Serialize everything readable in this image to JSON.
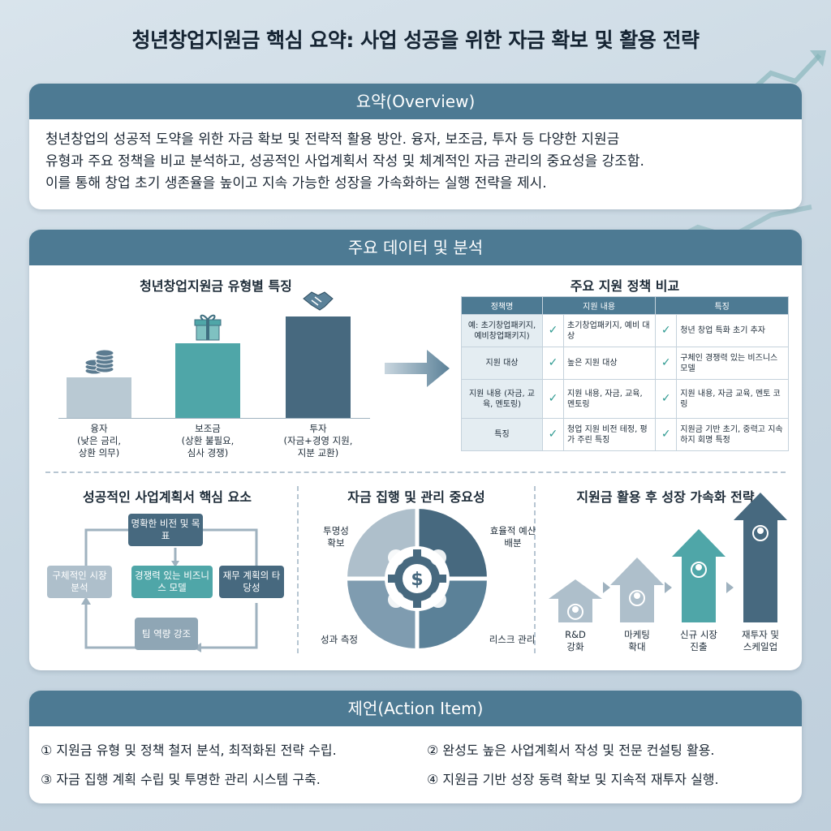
{
  "title": "청년창업지원금 핵심 요약: 사업 성공을 위한 자금 확보 및 활용 전략",
  "overview": {
    "heading": "요약(Overview)",
    "lines": [
      "청년창업의 성공적 도약을 위한 자금 확보 및 전략적 활용 방안. 융자, 보조금, 투자 등 다양한 지원금",
      "유형과 주요 정책을 비교 분석하고, 성공적인 사업계획서 작성 및 체계적인 자금 관리의 중요성을 강조함.",
      "이를 통해 창업 초기 생존율을 높이고 지속 가능한 성장을 가속화하는 실행 전략을 제시."
    ]
  },
  "analysis": {
    "heading": "주요 데이터 및 분석",
    "types_chart": {
      "title": "청년창업지원금 유형별 특징",
      "bars": [
        {
          "label1": "융자",
          "label2": "(낮은 금리,",
          "label3": "상환 의무)",
          "color": "#b9c9d3",
          "level": 0.37,
          "icon": "coins-icon"
        },
        {
          "label1": "보조금",
          "label2": "(상환 불필요,",
          "label3": "심사 경쟁)",
          "color": "#4fa6a8",
          "level": 0.68,
          "icon": "gift-icon"
        },
        {
          "label1": "투자",
          "label2": "(자금+경영 지원,",
          "label3": "지분 교환)",
          "color": "#47697f",
          "level": 0.92,
          "icon": "handshake-icon"
        }
      ]
    },
    "policy": {
      "title": "주요 지원 정책 비교",
      "headers": [
        "정책명",
        "지원 내용",
        "특징"
      ],
      "rows": [
        {
          "name": "예: 초기창업패키지, 예비창업패키지)",
          "content": "초기창업패키지, 예비 대상",
          "feature": "청년 창업 특화 초기 추자"
        },
        {
          "name": "지원 대상",
          "content": "높은 지원 대상",
          "feature": "구체인 경쟁력 있는 비즈니스 모델"
        },
        {
          "name": "지원 내용 (자금, 교육, 멘토링)",
          "content": "지원 내용, 자금, 교육, 멘토링",
          "feature": "지원 내용, 자금 교육, 멘토 코링"
        },
        {
          "name": "특징",
          "content": "청업 지원 비전 테정, 평가 주린 특징",
          "feature": "지원금 기반 초기, 중력고 지속하지 회명 특정"
        }
      ],
      "check": "✓"
    },
    "plan": {
      "title": "성공적인 사업계획서 핵심 요소",
      "top": "명확한 비전 및 목표",
      "left": "구체적인 시장 분석",
      "center": "경쟁력 있는 비즈니스 모델",
      "right": "재무 계획의 타당성",
      "bottom": "팀 역량 강조"
    },
    "funds": {
      "title": "자금 집행 및 관리 중요성",
      "q1": "투명성 확보",
      "q2": "효율적 예산 배분",
      "q3": "성과 측정",
      "q4": "리스크 관리",
      "center_symbol": "$"
    },
    "growth": {
      "title": "지원금 활용 후 성장 가속화 전략",
      "steps": [
        {
          "label1": "R&D",
          "label2": "강화",
          "color": "#aebfcb",
          "level": 0.33,
          "icon": "atom-icon"
        },
        {
          "label1": "마케팅",
          "label2": "확대",
          "color": "#aebfcb",
          "level": 0.5,
          "icon": "megaphone-icon"
        },
        {
          "label1": "신규 시장",
          "label2": "진출",
          "color": "#4fa6a8",
          "level": 0.72,
          "icon": "target-icon"
        },
        {
          "label1": "재투자 및",
          "label2": "스케일업",
          "color": "#47697f",
          "level": 1.0,
          "icon": "growth-chart-icon"
        }
      ]
    }
  },
  "action": {
    "heading": "제언(Action Item)",
    "items": [
      "① 지원금 유형 및 정책 철저 분석, 최적화된 전략 수립.",
      "② 완성도 높은 사업계획서 작성 및 전문 컨설팅 활용.",
      "③ 자금 집행 계획 수립 및 투명한 관리 시스템 구축.",
      "④ 지원금 기반 성장 동력 확보 및 지속적 재투자 실행."
    ]
  }
}
